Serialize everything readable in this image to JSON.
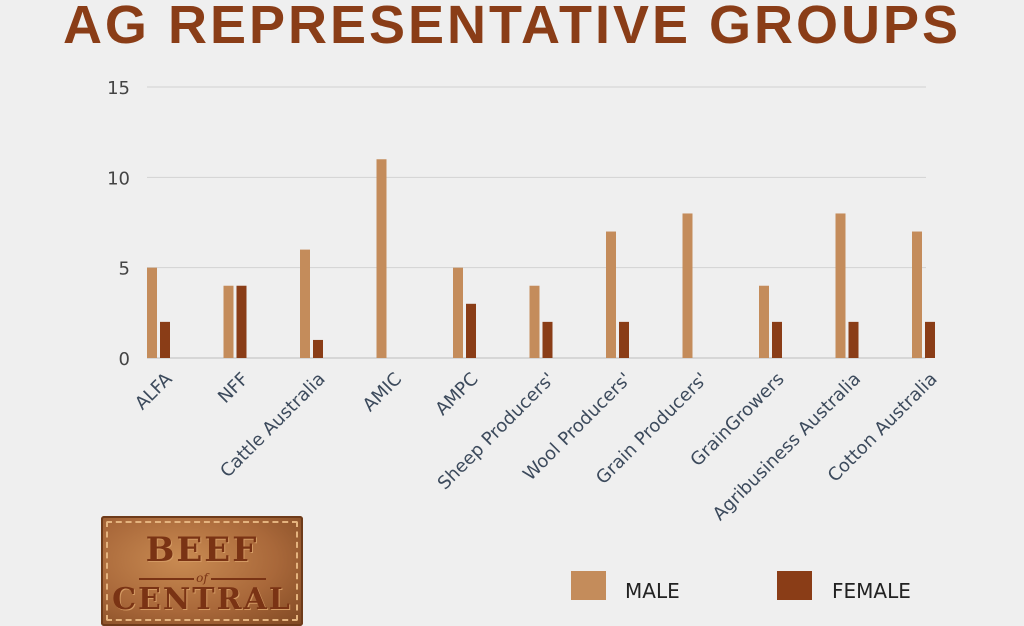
{
  "chart_data": {
    "type": "bar",
    "title": "AG REPRESENTATIVE GROUPS",
    "categories": [
      "ALFA",
      "NFF",
      "Cattle Australia",
      "AMIC",
      "AMPC",
      "Sheep Producers'",
      "Wool Producers'",
      "Grain Producers'",
      "GrainGrowers",
      "Agribusiness Australia",
      "Cotton Australia"
    ],
    "series": [
      {
        "name": "MALE",
        "color": "#c48c5b",
        "values": [
          5,
          4,
          6,
          11,
          5,
          4,
          7,
          8,
          4,
          8,
          7
        ]
      },
      {
        "name": "FEMALE",
        "color": "#8a3d17",
        "values": [
          2,
          4,
          1,
          0,
          3,
          2,
          2,
          0,
          2,
          2,
          2
        ]
      }
    ],
    "ylim": [
      0,
      15
    ],
    "yticks": [
      0,
      5,
      10,
      15
    ],
    "grid": true,
    "legend": "bottom-right",
    "xlabel": "",
    "ylabel": ""
  },
  "logo": {
    "text_top": "BEEF",
    "text_mid": "of",
    "text_bottom": "CENTRAL"
  }
}
